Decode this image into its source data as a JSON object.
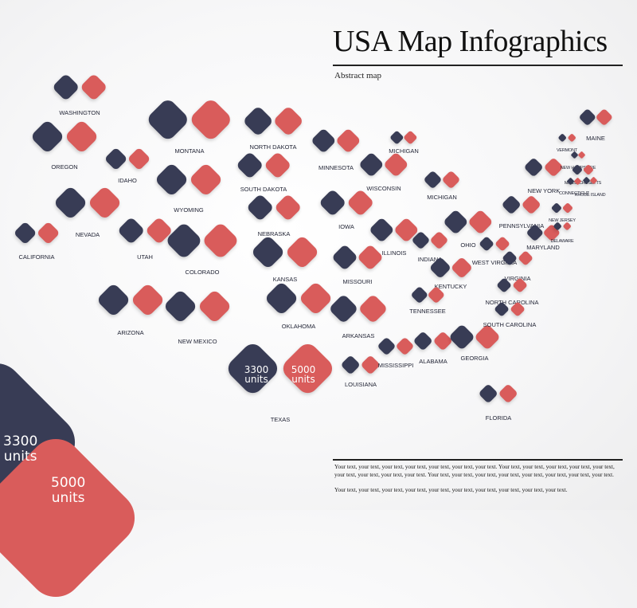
{
  "header": {
    "title": "USA Map Infographics",
    "subtitle": "Abstract map"
  },
  "colors": {
    "navy": "#383c55",
    "red": "#d95c5b"
  },
  "states": [
    {
      "name": "WASHINGTON"
    },
    {
      "name": "OREGON"
    },
    {
      "name": "CALIFORNIA"
    },
    {
      "name": "IDAHO"
    },
    {
      "name": "NEVADA"
    },
    {
      "name": "MONTANA"
    },
    {
      "name": "WYOMING"
    },
    {
      "name": "UTAH"
    },
    {
      "name": "ARIZONA"
    },
    {
      "name": "COLORADO"
    },
    {
      "name": "NEW MEXICO"
    },
    {
      "name": "NORTH DAKOTA"
    },
    {
      "name": "SOUTH DAKOTA"
    },
    {
      "name": "NEBRASKA"
    },
    {
      "name": "KANSAS"
    },
    {
      "name": "OKLAHOMA"
    },
    {
      "name": "TEXAS"
    },
    {
      "name": "MINNESOTA"
    },
    {
      "name": "IOWA"
    },
    {
      "name": "MISSOURI"
    },
    {
      "name": "ARKANSAS"
    },
    {
      "name": "LOUISIANA"
    },
    {
      "name": "WISCONSIN"
    },
    {
      "name": "ILLINOIS"
    },
    {
      "name": "MISSISSIPPI"
    },
    {
      "name": "MICHIGAN"
    },
    {
      "name": "MICHIGAN"
    },
    {
      "name": "INDIANA"
    },
    {
      "name": "OHIO"
    },
    {
      "name": "KENTUCKY"
    },
    {
      "name": "TENNESSEE"
    },
    {
      "name": "ALABAMA"
    },
    {
      "name": "GEORGIA"
    },
    {
      "name": "FLORIDA"
    },
    {
      "name": "WEST VIRGINIA"
    },
    {
      "name": "VIRGINIA"
    },
    {
      "name": "NORTH CAROLINA"
    },
    {
      "name": "SOUTH CAROLINA"
    },
    {
      "name": "PENNSYLVANIA"
    },
    {
      "name": "MARYLAND"
    },
    {
      "name": "NEW JERSEY"
    },
    {
      "name": "DELAWARE"
    },
    {
      "name": "NEW YORK"
    },
    {
      "name": "VERMONT"
    },
    {
      "name": "NEW HAMPSHIRE"
    },
    {
      "name": "MASSACHUSETTS"
    },
    {
      "name": "CONNECTICUT"
    },
    {
      "name": "RHODE ISLAND"
    },
    {
      "name": "MAINE"
    }
  ],
  "texas_values": {
    "navy_value": "3300",
    "navy_unit": "units",
    "red_value": "5000",
    "red_unit": "units"
  },
  "legend": {
    "navy_value": "3300",
    "navy_unit": "units",
    "red_value": "5000",
    "red_unit": "units"
  },
  "footer": {
    "paragraph_1": "Your text, your text, your text, your text, your text, your text, your text. Your text, your text, your text, your text, your text, your text, your text, your text, your text. Your text, your text, your text, your text, your text, your text, your text, your text.",
    "paragraph_2": "Your text, your text, your text, your text, your text, your text, your text, your text, your text, your text."
  }
}
